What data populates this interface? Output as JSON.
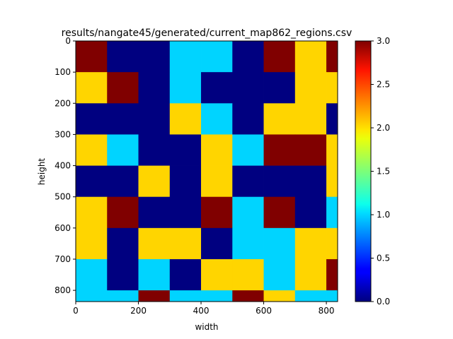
{
  "chart_data": {
    "type": "heatmap",
    "title": "results/nangate45/generated/current_map862_regions.csv",
    "xlabel": "width",
    "ylabel": "height",
    "x_ticks": [
      "0",
      "200",
      "400",
      "600",
      "800"
    ],
    "y_ticks": [
      "0",
      "100",
      "200",
      "300",
      "400",
      "500",
      "600",
      "700",
      "800"
    ],
    "x_range": [
      0,
      836
    ],
    "y_range": [
      0,
      836
    ],
    "cell_size": 100,
    "y_inverted": true,
    "colormap": "jet",
    "colorbar": {
      "min": 0.0,
      "max": 3.0,
      "ticks": [
        "0.0",
        "0.5",
        "1.0",
        "1.5",
        "2.0",
        "2.5",
        "3.0"
      ]
    },
    "grid": [
      [
        3,
        0,
        0,
        1,
        1,
        0,
        3,
        2,
        3
      ],
      [
        2,
        3,
        0,
        1,
        0,
        0,
        0,
        2,
        2
      ],
      [
        0,
        0,
        0,
        2,
        1,
        0,
        2,
        2,
        0
      ],
      [
        2,
        1,
        0,
        0,
        2,
        1,
        3,
        3,
        2
      ],
      [
        0,
        0,
        2,
        0,
        2,
        0,
        0,
        0,
        2
      ],
      [
        2,
        3,
        0,
        0,
        3,
        1,
        3,
        0,
        1
      ],
      [
        2,
        0,
        2,
        2,
        0,
        1,
        1,
        2,
        2
      ],
      [
        1,
        0,
        1,
        0,
        2,
        2,
        1,
        2,
        3
      ],
      [
        1,
        1,
        3,
        1,
        1,
        3,
        2,
        1,
        1
      ]
    ]
  }
}
